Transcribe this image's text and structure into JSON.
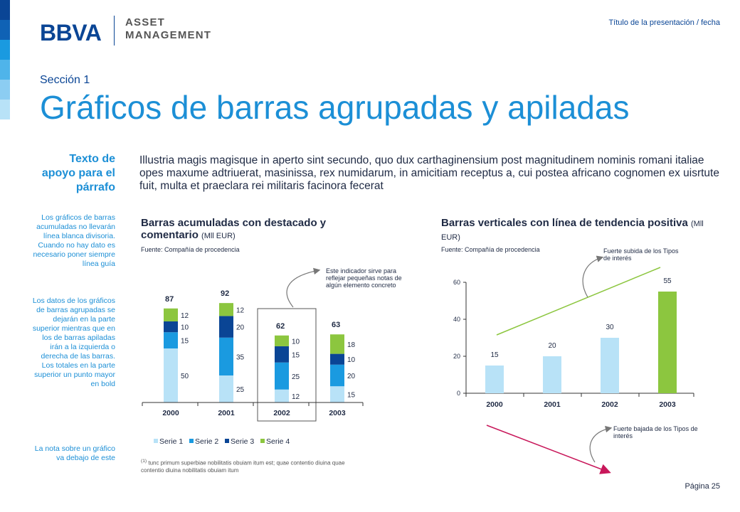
{
  "header": {
    "logo_name": "BBVA",
    "logo_sub_line1": "ASSET",
    "logo_sub_line2": "MANAGEMENT",
    "presentation_title": "Título de la presentación / fecha"
  },
  "colors": {
    "accent": "#1c8fd6",
    "navy": "#0a4595",
    "serie1": "#b8e2f7",
    "serie2": "#1a9ae0",
    "serie3": "#0a4595",
    "serie4": "#8cc63f",
    "trend_up": "#8cc63f",
    "trend_down": "#c8175a"
  },
  "section_label": "Sección 1",
  "title": "Gráficos de barras agrupadas y apiladas",
  "aside": {
    "heading": "Texto de apoyo para el párrafo",
    "note1": "Los gráficos de barras acumuladas no llevarán línea blanca divisoria. Cuando no hay dato es necesario poner siempre línea guía",
    "note2": "Los datos de los gráficos de barras agrupadas se dejarán en la parte superior mientras que en los de barras apiladas irán a la izquierda o derecha de las barras. Los totales en la parte superior un punto mayor en bold",
    "note3": "La nota sobre un gráfico va debajo de este"
  },
  "intro_text": "Illustria magis magisque in aperto sint secundo, quo dux carthaginensium post magnitudinem nominis romani italiae opes maxume adtriuerat, masinissa, rex numidarum, in amicitiam receptus a, cui postea africano cognomen ex uisrtute fuit, multa et praeclara rei militaris facinora fecerat",
  "left_chart": {
    "title": "Barras acumuladas con destacado y comentario",
    "unit": "(Mll EUR)",
    "source": "Fuente: Compañía de procedencia",
    "callout": "Este indicador sirve para reflejar pequeñas notas de algún elemento concreto",
    "footnote_mark": "(1)",
    "footnote": "tunc primum superbiae nobilitatis obuiam itum est; quae contentio diuina quae contentio diuina nobilitatis obuiam itum"
  },
  "right_chart": {
    "title": "Barras verticales con línea de tendencia positiva",
    "unit": "(Mll EUR)",
    "source": "Fuente: Compañía de procedencia",
    "note_up": "Fuerte subida de los Tipos de interés",
    "note_down": "Fuerte bajada de los Tipos de interés"
  },
  "page_label": "Página 25",
  "chart_data": [
    {
      "type": "bar",
      "stacked": true,
      "categories": [
        "2000",
        "2001",
        "2002",
        "2003"
      ],
      "series": [
        {
          "name": "Serie 1",
          "values": [
            50,
            25,
            12,
            15
          ]
        },
        {
          "name": "Serie 2",
          "values": [
            15,
            35,
            25,
            20
          ]
        },
        {
          "name": "Serie 3",
          "values": [
            10,
            20,
            15,
            10
          ]
        },
        {
          "name": "Serie 4",
          "values": [
            12,
            12,
            10,
            18
          ]
        }
      ],
      "totals": [
        87,
        92,
        62,
        63
      ],
      "highlight_category": "2002",
      "legend_position": "bottom",
      "grid": false
    },
    {
      "type": "bar",
      "categories": [
        "2000",
        "2001",
        "2002",
        "2003"
      ],
      "values": [
        15,
        20,
        30,
        55
      ],
      "highlight_category": "2003",
      "ylim": [
        0,
        60
      ],
      "yticks": [
        0,
        20,
        40,
        60
      ],
      "trendline": "positive",
      "grid": false
    }
  ]
}
